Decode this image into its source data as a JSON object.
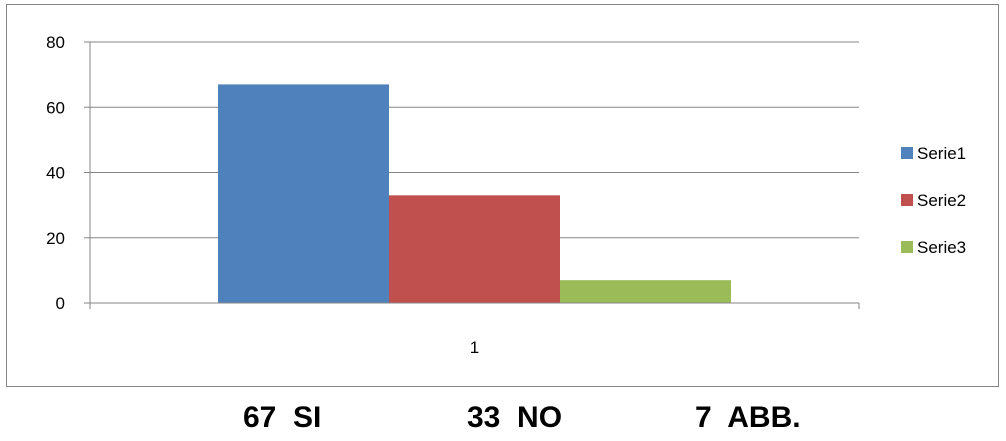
{
  "chart_data": {
    "type": "bar",
    "title": "",
    "xlabel": "",
    "ylabel": "",
    "categories": [
      "1"
    ],
    "series": [
      {
        "name": "Serie1",
        "values": [
          67
        ],
        "color": "#4F81BD"
      },
      {
        "name": "Serie2",
        "values": [
          33
        ],
        "color": "#C0504D"
      },
      {
        "name": "Serie3",
        "values": [
          7
        ],
        "color": "#9BBB59"
      }
    ],
    "ylim": [
      0,
      80
    ],
    "yticks": [
      0,
      20,
      40,
      60,
      80
    ],
    "grid": true,
    "legend_position": "right"
  },
  "caption": {
    "items": [
      "67  SI",
      "33  NO",
      "7  ABB."
    ]
  }
}
